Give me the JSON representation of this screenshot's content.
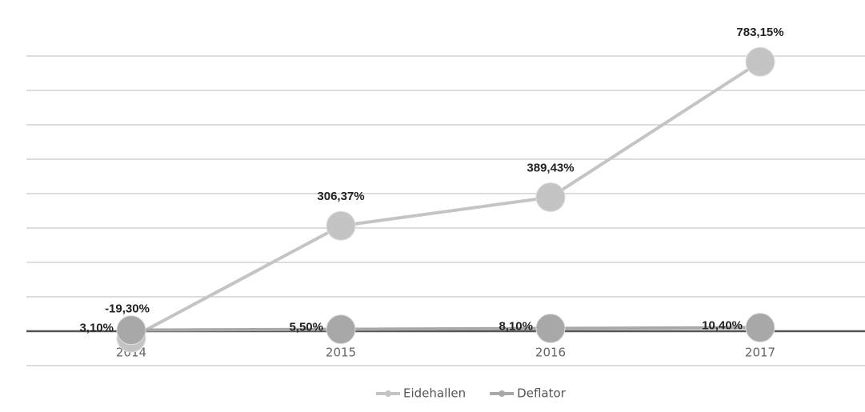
{
  "chart_data": {
    "type": "line",
    "categories": [
      "2014",
      "2015",
      "2016",
      "2017"
    ],
    "series": [
      {
        "name": "Eidehallen",
        "color": "#c4c4c4",
        "values": [
          -19.3,
          306.37,
          389.43,
          783.15
        ],
        "value_labels": [
          "-19,30%",
          "306,37%",
          "389,43%",
          "783,15%"
        ]
      },
      {
        "name": "Deflator",
        "color": "#a8a8a8",
        "values": [
          3.1,
          5.5,
          8.1,
          10.4
        ],
        "value_labels": [
          "3,10%",
          "5,50%",
          "8,10%",
          "10,40%"
        ]
      }
    ],
    "ylim": [
      -100,
      800
    ],
    "yticks": [
      -100,
      0,
      100,
      200,
      300,
      400,
      500,
      600,
      700,
      800
    ],
    "grid": true
  }
}
